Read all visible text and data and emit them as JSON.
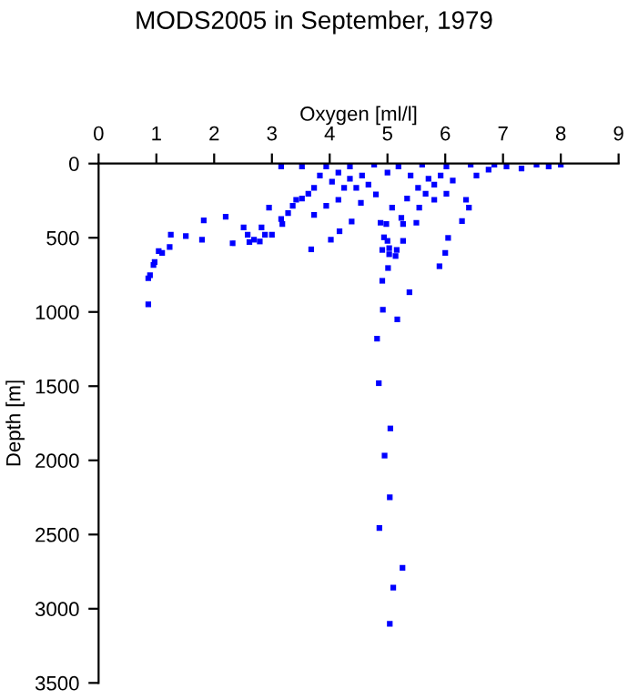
{
  "chart_data": {
    "type": "scatter",
    "title": "MODS2005 in September, 1979",
    "xlabel": "Oxygen [ml/l]",
    "ylabel": "Depth [m]",
    "xlim": [
      0,
      9
    ],
    "xticks": [
      0,
      1,
      2,
      3,
      4,
      5,
      6,
      7,
      8,
      9
    ],
    "ylim": [
      3500,
      0
    ],
    "yticks": [
      0,
      500,
      1000,
      1500,
      2000,
      2500,
      3000,
      3500
    ],
    "grid": false,
    "marker": "square",
    "series": [
      {
        "color": "#0000ff",
        "x": [
          4.85,
          5.05,
          4.95,
          5.04,
          4.86,
          5.26,
          5.1,
          5.04,
          0.86,
          0.86,
          0.89,
          0.95,
          0.97,
          1.1,
          1.04,
          1.23,
          1.25,
          1.51,
          1.79,
          1.82,
          2.2,
          2.32,
          2.51,
          2.58,
          2.61,
          2.69,
          2.79,
          2.82,
          2.88,
          3.0,
          2.95,
          3.16,
          3.18,
          3.28,
          3.36,
          3.52,
          3.68,
          3.73,
          4.02,
          4.17,
          4.38,
          4.54,
          4.8,
          4.88,
          4.91,
          4.98,
          4.94,
          5.0,
          5.03,
          5.01,
          5.03,
          5.14,
          5.16,
          5.27,
          5.27,
          5.24,
          5.08,
          4.91,
          4.92,
          5.17,
          4.82,
          5.38,
          5.9,
          6.0,
          6.05,
          6.29,
          6.36,
          6.41,
          5.5,
          5.55,
          5.34,
          5.81,
          6.02,
          5.53,
          5.81,
          4.67,
          4.46,
          4.15,
          3.94,
          3.16,
          3.52,
          3.94,
          4.35,
          4.77,
          5.19,
          5.6,
          6.02,
          6.44,
          6.85,
          7.06,
          7.32,
          7.58,
          7.79,
          8.0,
          3.83,
          4.04,
          4.15,
          4.35,
          4.25,
          3.73,
          3.63,
          3.42,
          4.56,
          5.0,
          5.4,
          5.71,
          5.92,
          6.13,
          5.66,
          6.54,
          6.75
        ],
        "values": [
          1480,
          1785,
          1968,
          2249,
          2456,
          2724,
          2858,
          3102,
          948,
          773,
          753,
          684,
          663,
          602,
          590,
          562,
          480,
          488,
          513,
          383,
          358,
          537,
          431,
          480,
          529,
          513,
          525,
          431,
          480,
          480,
          297,
          374,
          407,
          334,
          285,
          236,
          578,
          346,
          513,
          456,
          391,
          265,
          208,
          399,
          582,
          407,
          497,
          521,
          570,
          704,
          611,
          623,
          582,
          521,
          407,
          366,
          297,
          790,
          985,
          1050,
          1180,
          867,
          692,
          602,
          501,
          387,
          244,
          297,
          399,
          297,
          236,
          244,
          204,
          163,
          142,
          142,
          163,
          244,
          285,
          20,
          20,
          20,
          20,
          8,
          20,
          8,
          20,
          8,
          8,
          20,
          33,
          8,
          20,
          8,
          81,
          122,
          61,
          102,
          163,
          163,
          204,
          244,
          81,
          61,
          81,
          102,
          81,
          114,
          204,
          81,
          41
        ]
      }
    ]
  }
}
